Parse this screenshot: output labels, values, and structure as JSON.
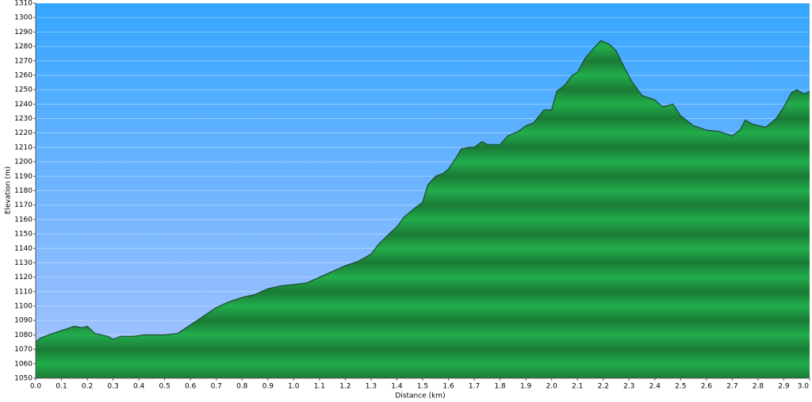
{
  "chart_data": {
    "type": "area",
    "x_label": "Distance   (km)",
    "y_label": "Elevation (m)",
    "x": [
      0,
      0.02,
      0.05,
      0.1,
      0.15,
      0.18,
      0.2,
      0.23,
      0.28,
      0.3,
      0.33,
      0.38,
      0.42,
      0.45,
      0.5,
      0.55,
      0.6,
      0.65,
      0.7,
      0.75,
      0.8,
      0.85,
      0.9,
      0.95,
      1.0,
      1.05,
      1.1,
      1.15,
      1.2,
      1.25,
      1.3,
      1.33,
      1.37,
      1.4,
      1.43,
      1.47,
      1.5,
      1.52,
      1.55,
      1.58,
      1.6,
      1.63,
      1.65,
      1.68,
      1.7,
      1.73,
      1.75,
      1.8,
      1.83,
      1.87,
      1.9,
      1.93,
      1.97,
      2.0,
      2.02,
      2.05,
      2.08,
      2.1,
      2.13,
      2.16,
      2.19,
      2.22,
      2.25,
      2.28,
      2.31,
      2.35,
      2.4,
      2.43,
      2.47,
      2.5,
      2.55,
      2.6,
      2.65,
      2.7,
      2.73,
      2.75,
      2.78,
      2.83,
      2.87,
      2.9,
      2.93,
      2.95,
      2.98,
      3.0
    ],
    "values": [
      1075,
      1078,
      1080,
      1083,
      1086,
      1085,
      1086,
      1081,
      1079,
      1077,
      1079,
      1079,
      1080,
      1080,
      1080,
      1081,
      1087,
      1093,
      1099,
      1103,
      1106,
      1108,
      1112,
      1114,
      1115,
      1116,
      1120,
      1124,
      1128,
      1131,
      1136,
      1143,
      1150,
      1155,
      1162,
      1168,
      1172,
      1184,
      1190,
      1192,
      1195,
      1203,
      1209,
      1210,
      1210,
      1214,
      1212,
      1212,
      1218,
      1221,
      1225,
      1227,
      1236,
      1236,
      1249,
      1253,
      1260,
      1262,
      1272,
      1278,
      1284,
      1282,
      1277,
      1266,
      1256,
      1246,
      1243,
      1238,
      1240,
      1232,
      1225,
      1222,
      1221,
      1218,
      1222,
      1229,
      1226,
      1224,
      1230,
      1238,
      1248,
      1250,
      1247,
      1249
    ],
    "color": "#22a84a",
    "line_color": "#1b4a2a",
    "grid": true,
    "xlim": [
      0,
      3
    ],
    "ylim": [
      1050,
      1310
    ],
    "xticks": [
      {
        "value": 0,
        "label": "0.0"
      },
      0.1,
      0.2,
      0.3,
      0.4,
      0.5,
      0.6,
      0.7,
      0.8,
      0.9,
      {
        "value": 1,
        "label": "1.0"
      },
      1.1,
      1.2,
      1.3,
      1.4,
      1.5,
      1.6,
      1.7,
      1.8,
      1.9,
      {
        "value": 2,
        "label": "2.0"
      },
      2.1,
      2.2,
      2.3,
      2.4,
      2.5,
      2.6,
      2.7,
      2.8,
      2.9,
      {
        "value": 3,
        "label": "3.0"
      }
    ],
    "yticks": [
      1050,
      1060,
      1070,
      1080,
      1090,
      1100,
      1110,
      1120,
      1130,
      1140,
      1150,
      1160,
      1170,
      1180,
      1190,
      1200,
      1210,
      1220,
      1230,
      1240,
      1250,
      1260,
      1270,
      1280,
      1290,
      1300,
      1310
    ]
  }
}
